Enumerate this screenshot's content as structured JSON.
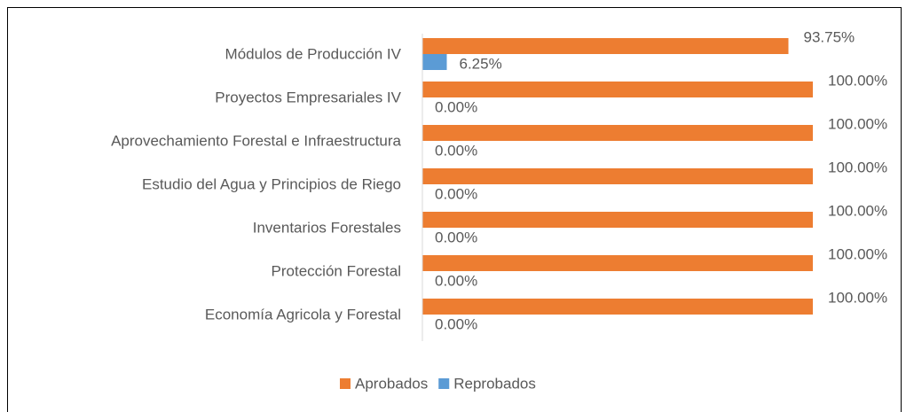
{
  "chart_data": {
    "type": "barh",
    "categories": [
      "Módulos de Producción IV",
      "Proyectos Empresariales IV",
      "Aprovechamiento Forestal e Infraestructura",
      "Estudio del Agua y Principios de Riego",
      "Inventarios Forestales",
      "Protección Forestal",
      "Economía Agricola y Forestal"
    ],
    "series": [
      {
        "name": "Aprobados",
        "color": "#ED7D31",
        "values": [
          93.75,
          100,
          100,
          100,
          100,
          100,
          100
        ],
        "value_labels": [
          "93.75%",
          "100.00%",
          "100.00%",
          "100.00%",
          "100.00%",
          "100.00%",
          "100.00%"
        ]
      },
      {
        "name": "Reprobados",
        "color": "#5B9BD5",
        "values": [
          6.25,
          0,
          0,
          0,
          0,
          0,
          0
        ],
        "value_labels": [
          "6.25%",
          "0.00%",
          "0.00%",
          "0.00%",
          "0.00%",
          "0.00%",
          "0.00%"
        ]
      }
    ],
    "xlim": [
      0,
      100
    ],
    "legend": "bottom"
  }
}
